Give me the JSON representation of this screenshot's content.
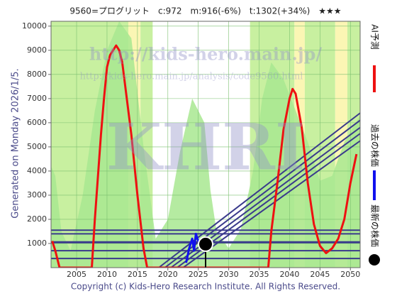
{
  "chart_data": {
    "type": "line",
    "title": "9560=プログリット　c:972　m:916(-6%)　t:1302(+34%)　★★★",
    "side_note": "Generated on Monday 2026/1/5.",
    "footer": "Copyright (c) Kids-Hero Research Institute. All Rights Reserved.",
    "watermarks": [
      "http://kids-hero.main.jp/",
      "http://kids-hero.main.jp/analysis/code9560.html",
      "KHRI"
    ],
    "xlim": [
      2000.8,
      2051.6
    ],
    "ylim": [
      0,
      10200
    ],
    "xticks": [
      2005,
      2010,
      2015,
      2020,
      2025,
      2030,
      2035,
      2040,
      2045,
      2050
    ],
    "yticks": [
      1000,
      2000,
      3000,
      4000,
      5000,
      6000,
      7000,
      8000,
      9000,
      10000
    ],
    "grid": true,
    "bands": [
      {
        "start": 2000.8,
        "end": 2013.5,
        "color": "#c8f0a0"
      },
      {
        "start": 2013.5,
        "end": 2015.5,
        "color": "#fbf6b4"
      },
      {
        "start": 2015.5,
        "end": 2017.5,
        "color": "#c8f0a0"
      },
      {
        "start": 2033.5,
        "end": 2040.8,
        "color": "#c8f0a0"
      },
      {
        "start": 2040.8,
        "end": 2042.5,
        "color": "#fbf6b4"
      },
      {
        "start": 2042.5,
        "end": 2047.5,
        "color": "#c8f0a0"
      },
      {
        "start": 2047.5,
        "end": 2049.5,
        "color": "#fbf6b4"
      },
      {
        "start": 2049.5,
        "end": 2051.6,
        "color": "#c8f0a0"
      }
    ],
    "area": {
      "color": "#a8e890",
      "x": [
        2000.8,
        2001.5,
        2002.5,
        2004,
        2006,
        2008,
        2010,
        2012,
        2014,
        2016,
        2018,
        2020,
        2022,
        2024,
        2026,
        2027,
        2028,
        2030,
        2032,
        2034,
        2035.5,
        2037,
        2039,
        2041,
        2043,
        2045,
        2047,
        2049,
        2051.6
      ],
      "values": [
        4200,
        3800,
        1500,
        700,
        3000,
        6500,
        9000,
        10200,
        9500,
        5000,
        1200,
        2000,
        4800,
        7000,
        6000,
        3200,
        1500,
        800,
        1600,
        4000,
        7000,
        8500,
        7800,
        6500,
        5200,
        3600,
        3800,
        5200,
        6300
      ]
    },
    "series": [
      {
        "name": "AI予測",
        "color": "#ee1111",
        "kind": "line",
        "x": [
          2001,
          2001.5,
          2002.2,
          2007.5,
          2008,
          2009,
          2009.5,
          2010,
          2010.5,
          2011,
          2011.5,
          2012,
          2012.5,
          2013,
          2014,
          2015,
          2016,
          2016.6,
          2036.5,
          2037,
          2038,
          2039,
          2040,
          2040.5,
          2041,
          2042,
          2043,
          2044,
          2045,
          2046,
          2047,
          2048,
          2049,
          2050,
          2051
        ],
        "values": [
          1100,
          700,
          0,
          0,
          2000,
          5500,
          7000,
          8300,
          8800,
          9000,
          9200,
          9000,
          8500,
          7500,
          5500,
          3000,
          800,
          0,
          0,
          1500,
          3500,
          5700,
          7000,
          7400,
          7200,
          5800,
          3500,
          1800,
          900,
          600,
          800,
          1200,
          2000,
          3500,
          4700
        ]
      },
      {
        "name": "過去の株価",
        "color": "#1111ee",
        "kind": "line",
        "x": [
          2023,
          2023.5,
          2024,
          2024.3,
          2024.6,
          2025,
          2025.5,
          2026
        ],
        "values": [
          200,
          800,
          1200,
          700,
          1400,
          1100,
          950,
          1000
        ]
      },
      {
        "name": "最新の株価",
        "color": "#000000",
        "kind": "point",
        "x": [
          2026.2
        ],
        "values": [
          972
        ]
      }
    ],
    "levels": {
      "color": "#3a3a8c",
      "values": [
        1550,
        1400,
        1050,
        700,
        380
      ]
    },
    "trends": {
      "color": "#3a3a8c",
      "x": [
        [
          2018.5,
          2051.6
        ],
        [
          2019.5,
          2051.6
        ],
        [
          2020.5,
          2051.6
        ],
        [
          2021.5,
          2051.6
        ],
        [
          2022.5,
          2051.6
        ]
      ],
      "values": [
        [
          0,
          6400
        ],
        [
          0,
          6100
        ],
        [
          0,
          5800
        ],
        [
          0,
          5550
        ],
        [
          0,
          5250
        ]
      ]
    }
  }
}
